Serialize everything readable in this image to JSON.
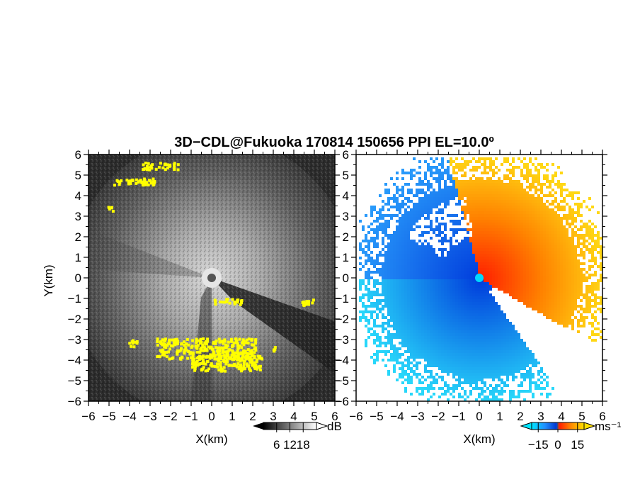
{
  "chart_data": [
    {
      "type": "heatmap",
      "panel": "left",
      "title": "3D−CDL@Fukuoka 170814 150656 PPI EL=10.0º",
      "xlabel": "X(km)",
      "ylabel": "Y(km)",
      "xlim": [
        -6,
        6
      ],
      "ylim": [
        -6,
        6
      ],
      "x_ticks": [
        "−6",
        "−5",
        "−4",
        "−3",
        "−2",
        "−1",
        "0",
        "1",
        "2",
        "3",
        "4",
        "5",
        "6"
      ],
      "y_ticks": [
        "−6",
        "−5",
        "−4",
        "−3",
        "−2",
        "−1",
        "0",
        "1",
        "2",
        "3",
        "4",
        "5",
        "6"
      ],
      "colormap": "grayscale",
      "overlay_color": "#ffff00",
      "colorbar": {
        "unit": "dB",
        "ticks": [
          "6",
          "12",
          "18"
        ],
        "range": [
          0,
          24
        ]
      }
    },
    {
      "type": "heatmap",
      "panel": "right",
      "xlabel": "X(km)",
      "xlim": [
        -6,
        6
      ],
      "ylim": [
        -6,
        6
      ],
      "x_ticks": [
        "−6",
        "−5",
        "−4",
        "−3",
        "−2",
        "−1",
        "0",
        "1",
        "2",
        "3",
        "4",
        "5",
        "6"
      ],
      "y_ticks": [
        "−6",
        "−5",
        "−4",
        "−3",
        "−2",
        "−1",
        "0",
        "1",
        "2",
        "3",
        "4",
        "5",
        "6"
      ],
      "colormap": "blue-white-red diverging",
      "colorbar": {
        "unit": "ms⁻¹",
        "ticks": [
          "−15",
          "0",
          "15"
        ],
        "range": [
          -20,
          20
        ]
      }
    }
  ]
}
